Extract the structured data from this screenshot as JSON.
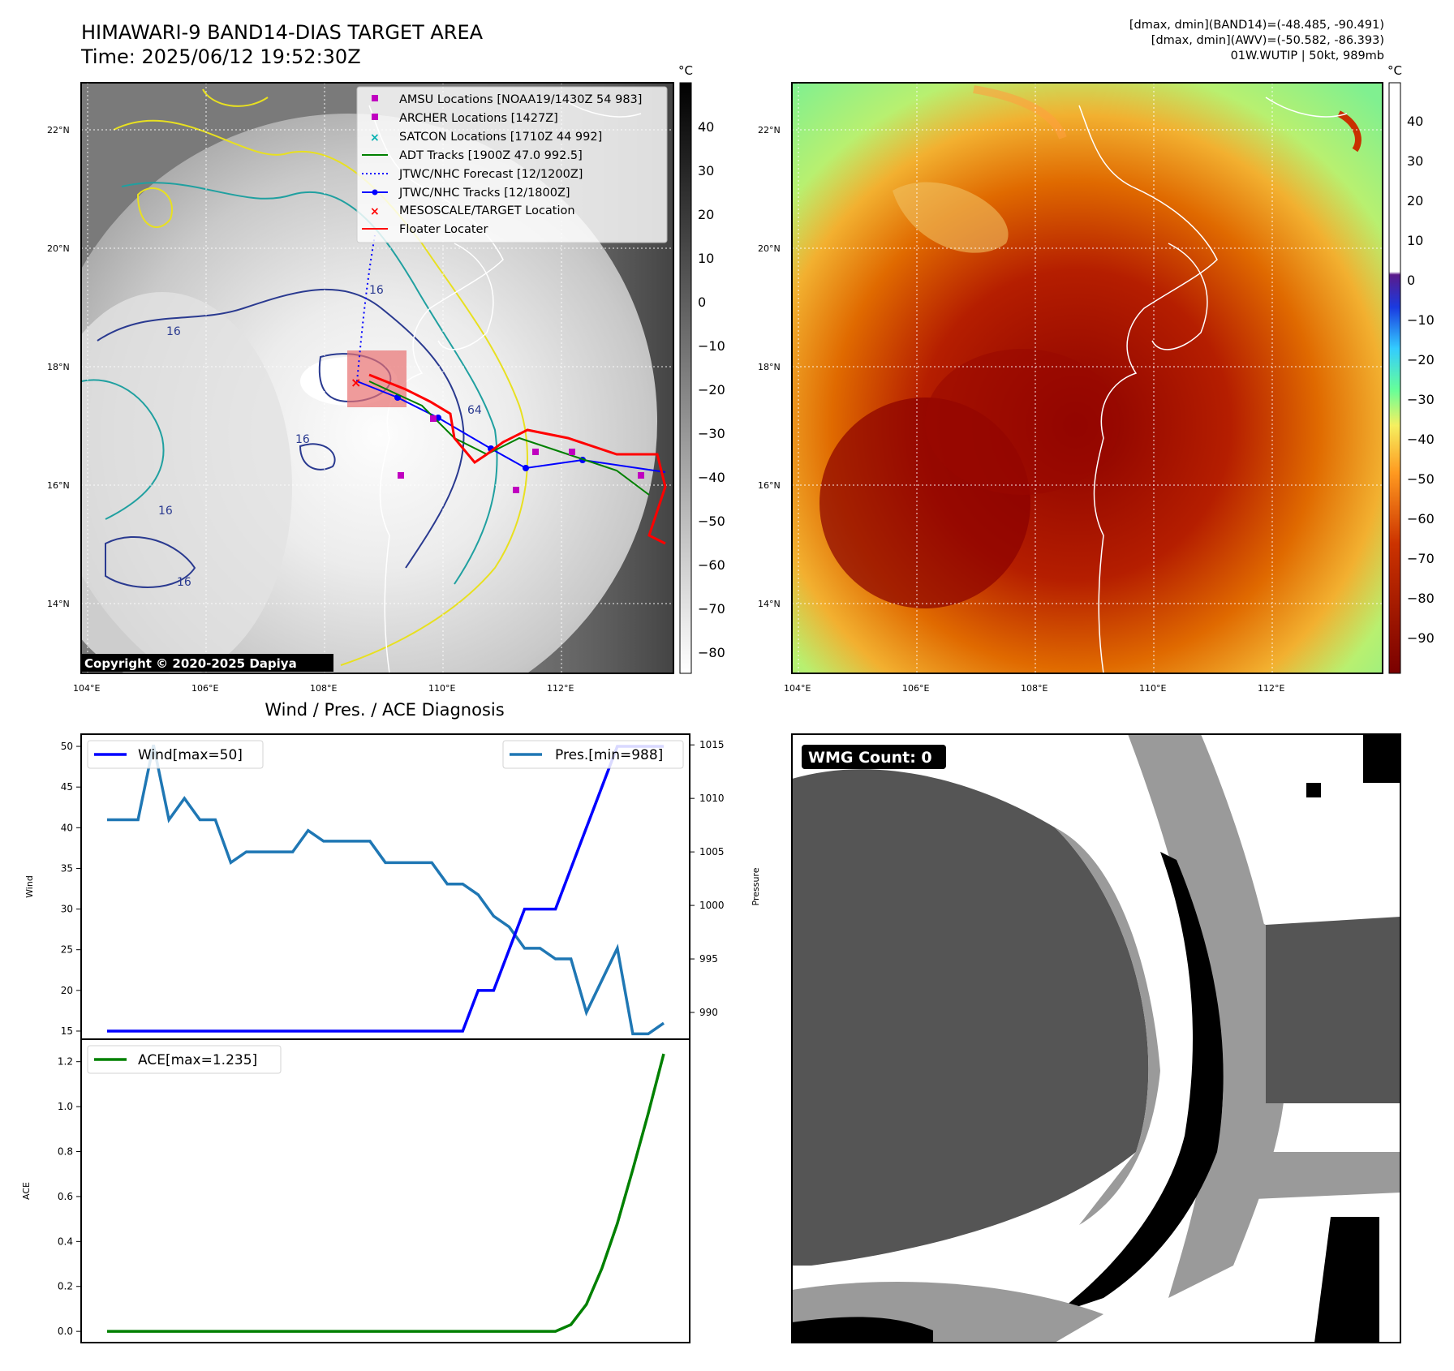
{
  "header": {
    "title": "HIMAWARI-9 BAND14-DIAS TARGET AREA",
    "time": "Time: 2025/06/12 19:52:30Z",
    "info_line1": "[dmax, dmin](BAND14)=(-48.485, -90.491)",
    "info_line2": "[dmax, dmin](AWV)=(-50.582, -86.393)",
    "info_line3": "01W.WUTIP | 50kt, 989mb"
  },
  "map_left": {
    "copyright": "Copyright © 2020-2025 Dapiya",
    "lon_ticks": [
      "104°E",
      "106°E",
      "108°E",
      "110°E",
      "112°E"
    ],
    "lat_ticks": [
      "22°N",
      "20°N",
      "18°N",
      "16°N",
      "14°N"
    ],
    "contour_labels": [
      "16",
      "16",
      "64",
      "16",
      "16",
      "16",
      "64"
    ],
    "legend": [
      {
        "label": "AMSU Locations [NOAA19/1430Z 54 983]",
        "marker": "square",
        "color": "#c000c0"
      },
      {
        "label": "ARCHER Locations [1427Z]",
        "marker": "square",
        "color": "#c000c0"
      },
      {
        "label": "SATCON Locations [1710Z 44 992]",
        "marker": "x",
        "color": "#00b0b0"
      },
      {
        "label": "ADT Tracks [1900Z 47.0 992.5]",
        "marker": "line",
        "color": "#008000"
      },
      {
        "label": "JTWC/NHC Forecast [12/1200Z]",
        "marker": "dotted",
        "color": "#0000ff"
      },
      {
        "label": "JTWC/NHC Tracks [12/1800Z]",
        "marker": "line-dot",
        "color": "#0000ff"
      },
      {
        "label": "MESOSCALE/TARGET Location",
        "marker": "x",
        "color": "#ff0000"
      },
      {
        "label": "Floater Locater",
        "marker": "line",
        "color": "#ff0000"
      }
    ],
    "colorbar_unit": "°C",
    "colorbar_ticks": [
      "40",
      "30",
      "20",
      "10",
      "0",
      "−10",
      "−20",
      "−30",
      "−40",
      "−50",
      "−60",
      "−70",
      "−80"
    ]
  },
  "map_right": {
    "lon_ticks": [
      "104°E",
      "106°E",
      "108°E",
      "110°E",
      "112°E"
    ],
    "lat_ticks": [
      "22°N",
      "20°N",
      "18°N",
      "16°N",
      "14°N"
    ],
    "colorbar_unit": "°C",
    "colorbar_ticks": [
      "40",
      "30",
      "20",
      "10",
      "0",
      "−10",
      "−20",
      "−30",
      "−40",
      "−50",
      "−60",
      "−70",
      "−80",
      "−90"
    ]
  },
  "diagnosis": {
    "title": "Wind / Pres. / ACE Diagnosis",
    "wind_axis_label": "Wind",
    "pressure_axis_label": "Pressure",
    "ace_axis_label": "ACE",
    "legend_wind": "Wind[max=50]",
    "legend_pres": "Pres.[min=988]",
    "legend_ace": "ACE[max=1.235]",
    "wind_ticks": [
      "50",
      "45",
      "40",
      "35",
      "30",
      "25",
      "20",
      "15"
    ],
    "pres_ticks": [
      "1015",
      "1010",
      "1005",
      "1000",
      "995",
      "990"
    ],
    "ace_ticks": [
      "1.2",
      "1.0",
      "0.8",
      "0.6",
      "0.4",
      "0.2",
      "0.0"
    ]
  },
  "wmg": {
    "label": "WMG Count: 0"
  },
  "colors": {
    "wind": "#0000ff",
    "pressure": "#1f77b4",
    "ace": "#008000",
    "floater": "#ff0000"
  },
  "chart_data": [
    {
      "type": "line",
      "x": [
        0,
        1,
        2,
        3,
        4,
        5,
        6,
        7,
        8,
        9,
        10,
        11,
        12,
        13,
        14,
        15,
        16,
        17,
        18,
        19,
        20,
        21,
        22,
        23,
        24,
        25,
        26,
        27,
        28,
        29,
        30,
        31,
        32,
        33,
        34,
        35,
        36
      ],
      "series": [
        {
          "name": "Wind[max=50]",
          "axis": "left",
          "values": [
            15,
            15,
            15,
            15,
            15,
            15,
            15,
            15,
            15,
            15,
            15,
            15,
            15,
            15,
            15,
            15,
            15,
            15,
            15,
            15,
            15,
            15,
            15,
            15,
            20,
            20,
            25,
            30,
            30,
            30,
            35,
            40,
            45,
            50,
            50,
            50,
            50
          ]
        },
        {
          "name": "Pres.[min=988]",
          "axis": "right",
          "values": [
            1008,
            1008,
            1008,
            1015,
            1008,
            1010,
            1008,
            1008,
            1004,
            1005,
            1005,
            1005,
            1005,
            1007,
            1006,
            1006,
            1006,
            1006,
            1004,
            1004,
            1004,
            1004,
            1002,
            1002,
            1001,
            999,
            998,
            996,
            996,
            995,
            995,
            990,
            993,
            996,
            988,
            988,
            989
          ]
        }
      ],
      "ylim_left": [
        14,
        51.5
      ],
      "ylim_right": [
        987.5,
        1016
      ],
      "ylabel": "Wind",
      "ylabel_right": "Pressure",
      "title": "Wind / Pres. / ACE Diagnosis"
    },
    {
      "type": "line",
      "x": [
        0,
        1,
        2,
        3,
        4,
        5,
        6,
        7,
        8,
        9,
        10,
        11,
        12,
        13,
        14,
        15,
        16,
        17,
        18,
        19,
        20,
        21,
        22,
        23,
        24,
        25,
        26,
        27,
        28,
        29,
        30,
        31,
        32,
        33,
        34,
        35,
        36
      ],
      "series": [
        {
          "name": "ACE[max=1.235]",
          "values": [
            0,
            0,
            0,
            0,
            0,
            0,
            0,
            0,
            0,
            0,
            0,
            0,
            0,
            0,
            0,
            0,
            0,
            0,
            0,
            0,
            0,
            0,
            0,
            0,
            0,
            0,
            0,
            0,
            0,
            0,
            0.03,
            0.12,
            0.28,
            0.48,
            0.72,
            0.97,
            1.235
          ]
        }
      ],
      "ylim": [
        -0.05,
        1.3
      ],
      "ylabel": "ACE"
    }
  ]
}
